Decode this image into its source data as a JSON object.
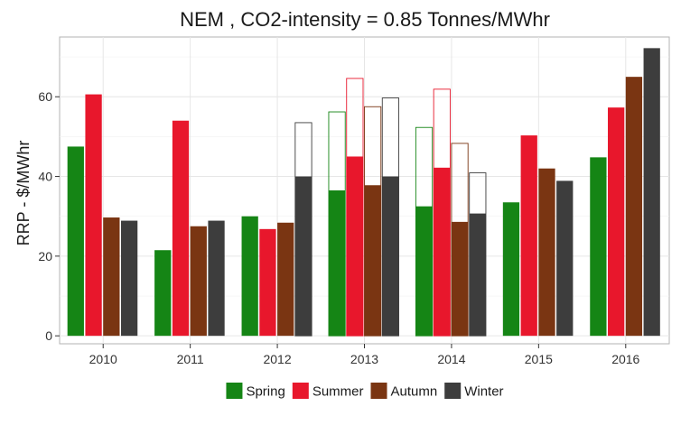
{
  "chart_data": {
    "type": "bar",
    "title": "NEM , CO2-intensity = 0.85 Tonnes/MWhr",
    "xlabel": "",
    "ylabel": "RRP - $/MWhr",
    "ylim": [
      -2,
      75
    ],
    "yticks": [
      0,
      20,
      40,
      60
    ],
    "grid": true,
    "legend_position": "bottom",
    "categories": [
      "2010",
      "2011",
      "2012",
      "2013",
      "2014",
      "2015",
      "2016"
    ],
    "series": [
      {
        "name": "Spring",
        "color": "#158515",
        "values": [
          47.5,
          21.5,
          30,
          36.5,
          32.5,
          33.5,
          44.8
        ],
        "outline_values": [
          null,
          null,
          null,
          56.2,
          52.3,
          null,
          null
        ]
      },
      {
        "name": "Summer",
        "color": "#e8172c",
        "values": [
          60.6,
          54,
          26.8,
          45,
          42.2,
          50.3,
          57.3
        ],
        "outline_values": [
          null,
          null,
          null,
          64.6,
          61.9,
          null,
          null
        ]
      },
      {
        "name": "Autumn",
        "color": "#7a3512",
        "values": [
          29.7,
          27.5,
          28.4,
          37.8,
          28.6,
          42,
          65
        ],
        "outline_values": [
          null,
          null,
          null,
          57.5,
          48.3,
          null,
          null
        ]
      },
      {
        "name": "Winter",
        "color": "#3d3d3d",
        "values": [
          28.9,
          28.9,
          40,
          40,
          30.7,
          38.9,
          72.2
        ],
        "outline_values": [
          null,
          null,
          53.5,
          59.7,
          40.9,
          null,
          null
        ]
      }
    ]
  }
}
